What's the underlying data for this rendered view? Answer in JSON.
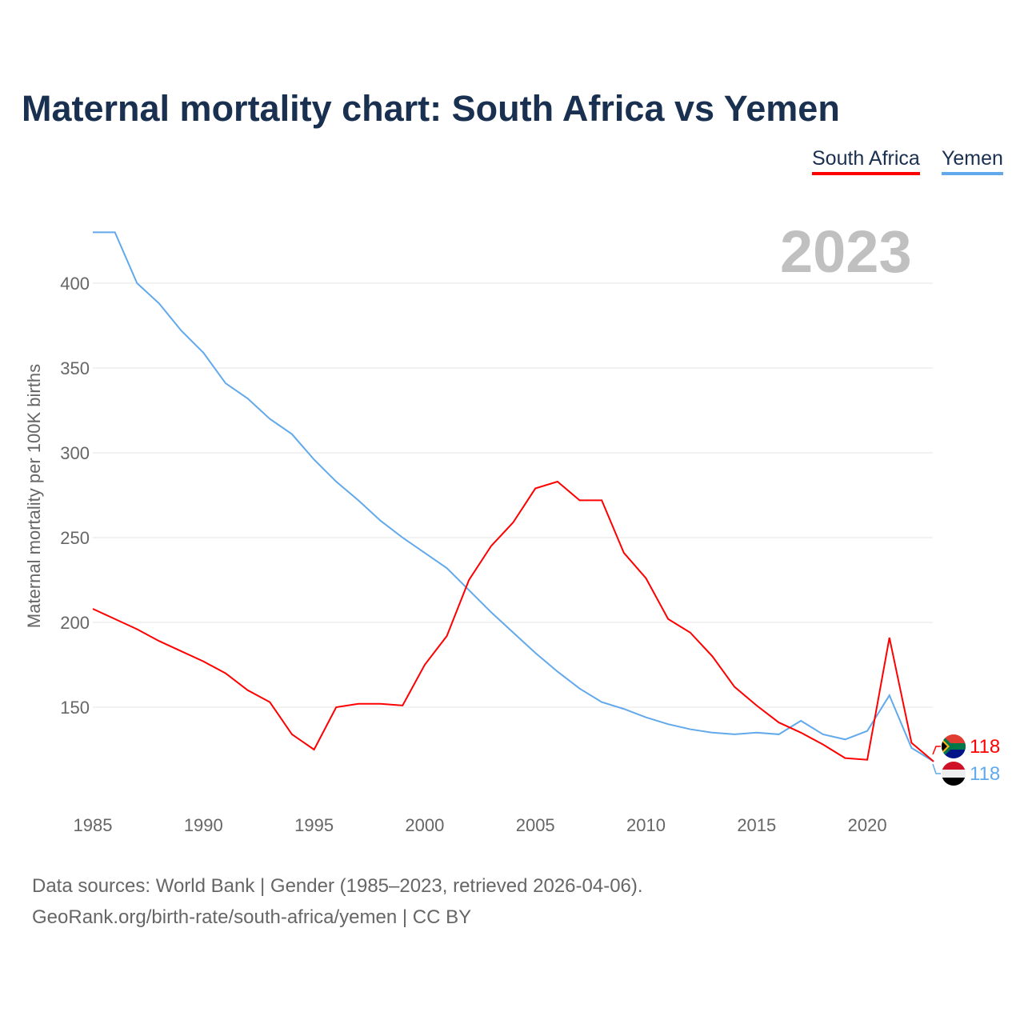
{
  "title": "Maternal mortality chart: South Africa vs Yemen",
  "year_label": "2023",
  "source_line1": "Data sources: World Bank | Gender (1985–2023, retrieved 2026-04-06).",
  "source_line2": "GeoRank.org/birth-rate/south-africa/yemen | CC BY",
  "chart_data": {
    "type": "line",
    "title": "Maternal mortality chart: South Africa vs Yemen",
    "xlabel": "",
    "ylabel": "Maternal mortality per 100K births",
    "xlim": [
      1985,
      2023
    ],
    "ylim": [
      100,
      430
    ],
    "yticks": [
      150,
      200,
      250,
      300,
      350,
      400
    ],
    "xticks": [
      1985,
      1990,
      1995,
      2000,
      2005,
      2010,
      2015,
      2020
    ],
    "grid": true,
    "legend_placement": "top-right",
    "x": [
      1985,
      1986,
      1987,
      1988,
      1989,
      1990,
      1991,
      1992,
      1993,
      1994,
      1995,
      1996,
      1997,
      1998,
      1999,
      2000,
      2001,
      2002,
      2003,
      2004,
      2005,
      2006,
      2007,
      2008,
      2009,
      2010,
      2011,
      2012,
      2013,
      2014,
      2015,
      2016,
      2017,
      2018,
      2019,
      2020,
      2021,
      2022,
      2023
    ],
    "series": [
      {
        "name": "South Africa",
        "color": "#ff0000",
        "end_label": "118",
        "values": [
          208,
          202,
          196,
          189,
          183,
          177,
          170,
          160,
          153,
          134,
          125,
          150,
          152,
          152,
          151,
          175,
          192,
          225,
          245,
          259,
          279,
          283,
          272,
          272,
          241,
          226,
          202,
          194,
          180,
          162,
          151,
          141,
          135,
          128,
          120,
          119,
          191,
          129,
          118
        ]
      },
      {
        "name": "Yemen",
        "color": "#62a9ec",
        "end_label": "118",
        "values": [
          430,
          430,
          400,
          388,
          372,
          359,
          341,
          332,
          320,
          311,
          296,
          283,
          272,
          260,
          250,
          241,
          232,
          219,
          206,
          194,
          182,
          171,
          161,
          153,
          149,
          144,
          140,
          137,
          135,
          134,
          135,
          134,
          142,
          134,
          131,
          136,
          157,
          126,
          118
        ]
      }
    ]
  }
}
